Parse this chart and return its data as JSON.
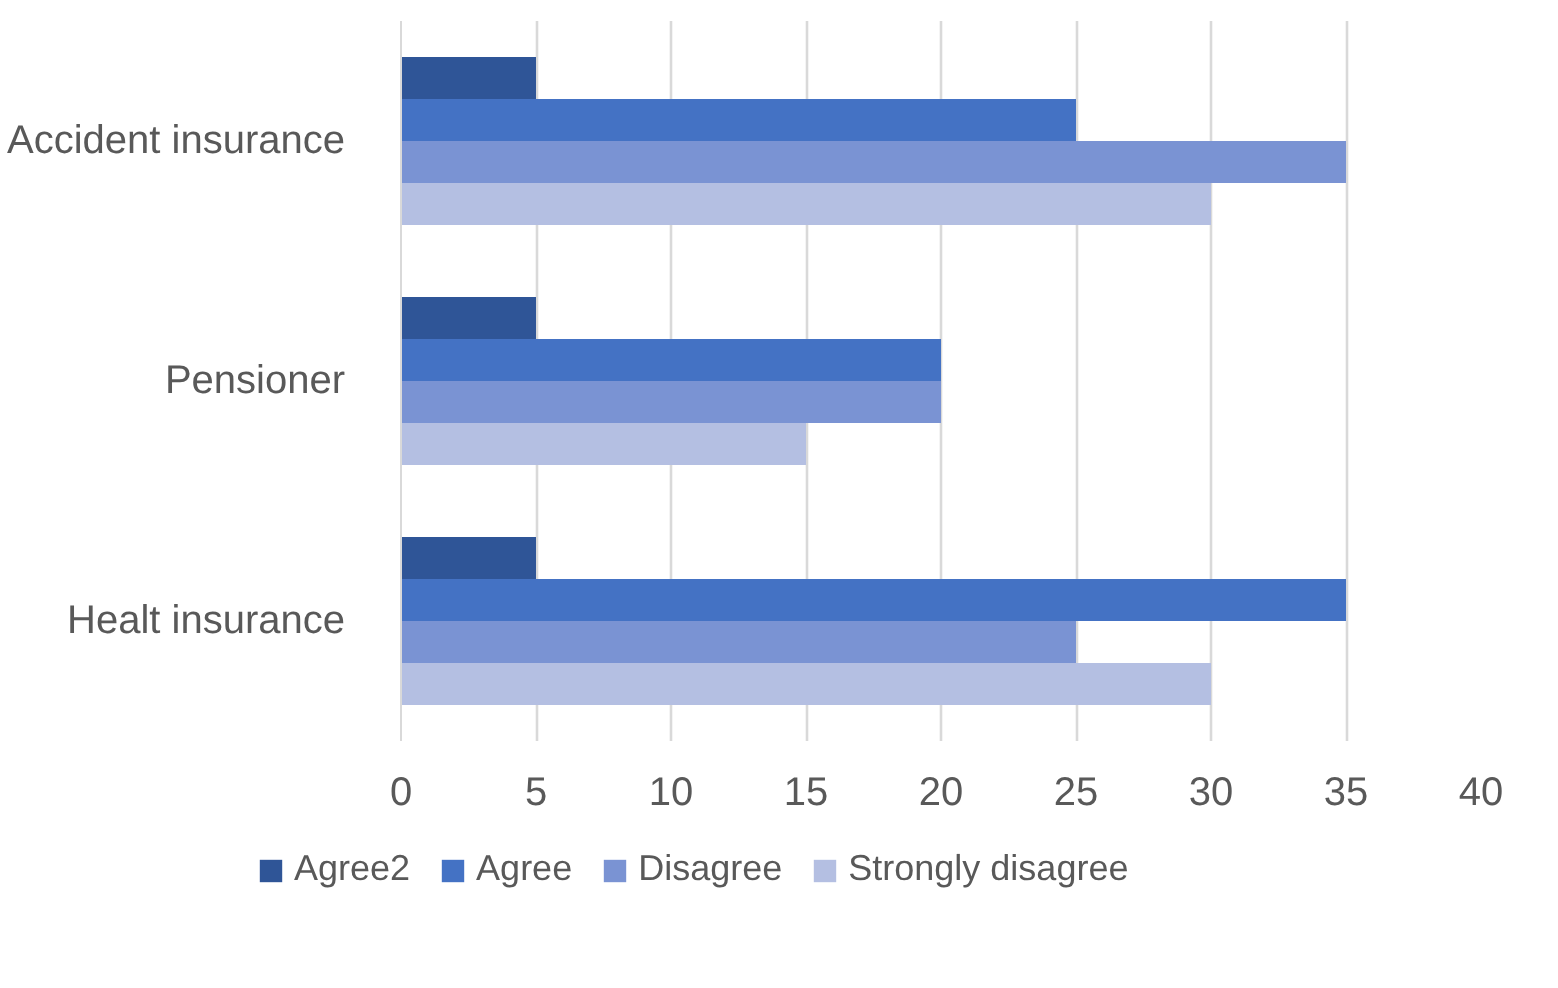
{
  "chart_data": {
    "type": "bar",
    "orientation": "horizontal",
    "categories": [
      "Accident insurance",
      "Pensioner",
      "Healt insurance"
    ],
    "series": [
      {
        "name": "Agree2",
        "color": "#2f5597",
        "values": [
          5,
          5,
          5
        ]
      },
      {
        "name": "Agree",
        "color": "#4472c4",
        "values": [
          25,
          20,
          35
        ]
      },
      {
        "name": "Disagree",
        "color": "#7a93d3",
        "values": [
          35,
          20,
          25
        ]
      },
      {
        "name": "Strongly disagree",
        "color": "#b4bfe2",
        "values": [
          30,
          15,
          30
        ]
      }
    ],
    "xlim": [
      0,
      40
    ],
    "xticks": [
      0,
      5,
      10,
      15,
      20,
      25,
      30,
      35,
      40
    ],
    "grid": "x",
    "legend": "bottom"
  }
}
